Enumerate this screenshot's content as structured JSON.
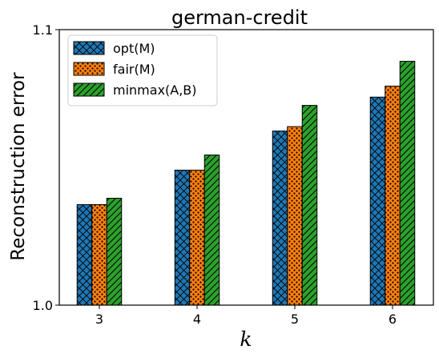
{
  "chart_data": {
    "type": "bar",
    "title": "german-credit",
    "xlabel": "k",
    "ylabel": "Reconstruction error",
    "categories": [
      "3",
      "4",
      "5",
      "6"
    ],
    "ylim": [
      1.0,
      1.1
    ],
    "yticks": [
      "1.0",
      "1.1"
    ],
    "series": [
      {
        "name": "opt(M)",
        "values": [
          1.0365,
          1.049,
          1.0632,
          1.0755
        ],
        "color": "#1f77b4",
        "hatch": "crosshatch"
      },
      {
        "name": "fair(M)",
        "values": [
          1.0365,
          1.049,
          1.0648,
          1.0795
        ],
        "color": "#ff7f0e",
        "hatch": "dots"
      },
      {
        "name": "minmax(A,B)",
        "values": [
          1.0388,
          1.0545,
          1.0725,
          1.0885
        ],
        "color": "#2ca02c",
        "hatch": "diagonal"
      }
    ],
    "legend_position": "top-left",
    "grid": false
  }
}
